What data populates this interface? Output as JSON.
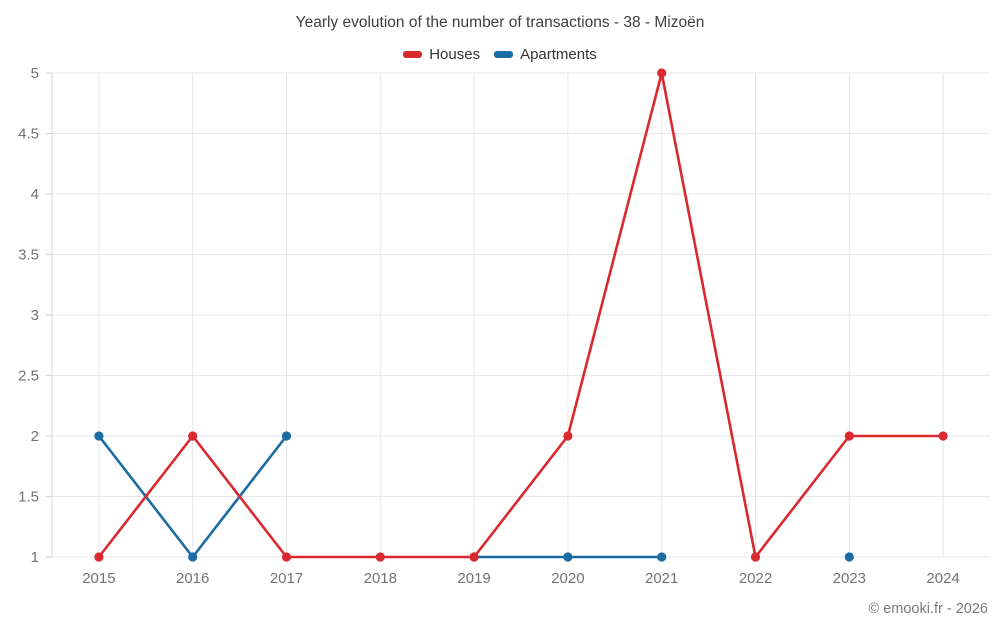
{
  "title": "Yearly evolution of the number of transactions - 38 - Mizoën",
  "footer": "© emooki.fr - 2026",
  "legend": {
    "items": [
      "Houses",
      "Apartments"
    ]
  },
  "chart_data": {
    "type": "line",
    "title": "Yearly evolution of the number of transactions - 38 - Mizoën",
    "categories": [
      "2015",
      "2016",
      "2017",
      "2018",
      "2019",
      "2020",
      "2021",
      "2022",
      "2023",
      "2024"
    ],
    "series": [
      {
        "name": "Houses",
        "color": "#d9292e",
        "values": [
          1,
          2,
          1,
          1,
          1,
          2,
          5,
          1,
          2,
          2
        ]
      },
      {
        "name": "Apartments",
        "color": "#1a6ca3",
        "values": [
          2,
          1,
          2,
          null,
          1,
          1,
          1,
          null,
          1,
          null
        ]
      }
    ],
    "xlabel": "",
    "ylabel": "",
    "ylim": [
      1,
      5
    ],
    "yticks": [
      1,
      1.5,
      2,
      2.5,
      3,
      3.5,
      4,
      4.5,
      5
    ],
    "grid": true,
    "legend_position": "top",
    "marker": "circle"
  },
  "colors": {
    "grid": "#e7e7e7",
    "axis_line": "#d6d6d6",
    "tick": "#d0d0d0",
    "axis_label": "#737373",
    "title_text": "#3f3f3f",
    "footer_text": "#7a7a7a"
  }
}
